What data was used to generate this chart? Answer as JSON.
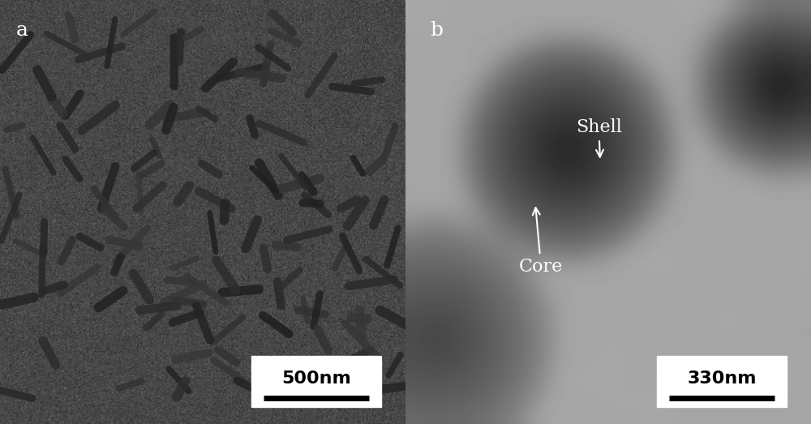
{
  "fig_width": 10.0,
  "fig_height": 5.23,
  "panel_a_label": "a",
  "panel_b_label": "b",
  "scale_bar_a_text": "500nm",
  "scale_bar_b_text": "330nm",
  "core_label": "Core",
  "shell_label": "Shell",
  "label_color": "white",
  "label_fontsize": 18,
  "scalebar_fontsize": 16,
  "annotation_fontsize": 16,
  "bg_color_a": "#3a3a3a",
  "bg_color_b": "#888888"
}
